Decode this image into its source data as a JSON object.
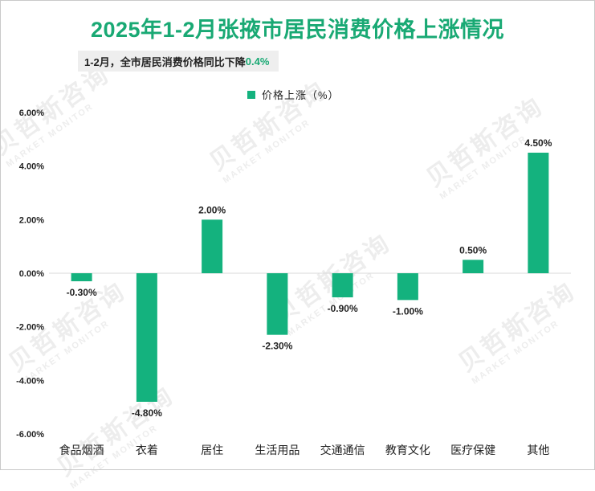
{
  "page": {
    "title": "2025年1-2月张掖市居民消费价格上涨情况",
    "subtitle_prefix": "1-2月，全市居民消费价格同比下降",
    "subtitle_value": "0.4%"
  },
  "watermark": {
    "cn": "贝哲斯咨询",
    "en": "MARKET MONITOR"
  },
  "colors": {
    "accent": "#19a974",
    "bar": "#14b27e",
    "axis": "#d9d9d9"
  },
  "chart_data": {
    "type": "bar",
    "title": "2025年1-2月张掖市居民消费价格上涨情况",
    "legend": "价格上涨（%）",
    "categories": [
      "食品烟酒",
      "衣着",
      "居住",
      "生活用品",
      "交通通信",
      "教育文化",
      "医疗保健",
      "其他"
    ],
    "values": [
      -0.3,
      -4.8,
      2.0,
      -2.3,
      -0.9,
      -1.0,
      0.5,
      4.5
    ],
    "value_labels": [
      "-0.30%",
      "-4.80%",
      "2.00%",
      "-2.30%",
      "-0.90%",
      "-1.00%",
      "0.50%",
      "4.50%"
    ],
    "y_ticks": [
      6,
      4,
      2,
      0,
      -2,
      -4,
      -6
    ],
    "y_tick_labels": [
      "6.00%",
      "4.00%",
      "2.00%",
      "0.00%",
      "-2.00%",
      "-4.00%",
      "-6.00%"
    ],
    "ylim": [
      -6,
      6
    ],
    "xlabel": "",
    "ylabel": "",
    "grid": false
  }
}
